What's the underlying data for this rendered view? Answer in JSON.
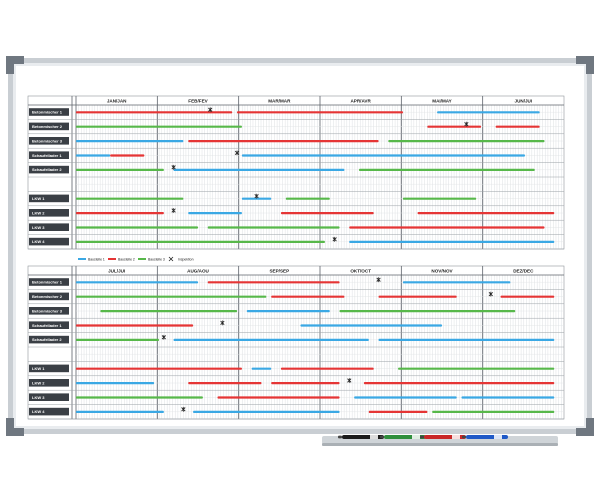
{
  "board": {
    "colors": {
      "blue": "#3aa8e4",
      "red": "#e53535",
      "green": "#57b84a",
      "frame": "#c9ced3",
      "corner": "#6f7780",
      "row_label_bg": "#3a3f45",
      "grid_line": "#b9bec3"
    },
    "top": {
      "months": [
        "JAN/JAN",
        "FEB/FEV",
        "MAR/MAR",
        "APR/AVR",
        "MAI/MAY",
        "JUN/JUI"
      ],
      "rows": [
        "Betonmischer 1",
        "Betonmischer 2",
        "Betonmischer 3",
        "Schaufellader 1",
        "Schaufellader 2",
        "",
        "LKW 1",
        "LKW 2",
        "LKW 3",
        "LKW 4"
      ],
      "bars": [
        {
          "row": 0,
          "start": 0.0,
          "end": 0.32,
          "color": "red"
        },
        {
          "row": 0,
          "start": 0.33,
          "end": 0.67,
          "color": "red"
        },
        {
          "row": 0,
          "start": 0.74,
          "end": 0.95,
          "color": "blue"
        },
        {
          "row": 1,
          "start": 0.0,
          "end": 0.34,
          "color": "green"
        },
        {
          "row": 1,
          "start": 0.72,
          "end": 0.83,
          "color": "red"
        },
        {
          "row": 1,
          "start": 0.86,
          "end": 0.95,
          "color": "red"
        },
        {
          "row": 2,
          "start": 0.0,
          "end": 0.22,
          "color": "blue"
        },
        {
          "row": 2,
          "start": 0.23,
          "end": 0.62,
          "color": "red"
        },
        {
          "row": 2,
          "start": 0.64,
          "end": 0.96,
          "color": "green"
        },
        {
          "row": 3,
          "start": 0.0,
          "end": 0.07,
          "color": "blue"
        },
        {
          "row": 3,
          "start": 0.07,
          "end": 0.14,
          "color": "red"
        },
        {
          "row": 3,
          "start": 0.34,
          "end": 0.92,
          "color": "blue"
        },
        {
          "row": 4,
          "start": 0.0,
          "end": 0.18,
          "color": "green"
        },
        {
          "row": 4,
          "start": 0.2,
          "end": 0.55,
          "color": "blue"
        },
        {
          "row": 4,
          "start": 0.58,
          "end": 0.94,
          "color": "green"
        },
        {
          "row": 6,
          "start": 0.0,
          "end": 0.22,
          "color": "green"
        },
        {
          "row": 6,
          "start": 0.34,
          "end": 0.4,
          "color": "blue"
        },
        {
          "row": 6,
          "start": 0.43,
          "end": 0.52,
          "color": "green"
        },
        {
          "row": 6,
          "start": 0.67,
          "end": 0.82,
          "color": "green"
        },
        {
          "row": 7,
          "start": 0.0,
          "end": 0.18,
          "color": "red"
        },
        {
          "row": 7,
          "start": 0.23,
          "end": 0.34,
          "color": "blue"
        },
        {
          "row": 7,
          "start": 0.42,
          "end": 0.61,
          "color": "red"
        },
        {
          "row": 7,
          "start": 0.7,
          "end": 0.98,
          "color": "red"
        },
        {
          "row": 8,
          "start": 0.0,
          "end": 0.25,
          "color": "green"
        },
        {
          "row": 8,
          "start": 0.27,
          "end": 0.54,
          "color": "green"
        },
        {
          "row": 8,
          "start": 0.56,
          "end": 0.96,
          "color": "red"
        },
        {
          "row": 9,
          "start": 0.0,
          "end": 0.51,
          "color": "green"
        },
        {
          "row": 9,
          "start": 0.56,
          "end": 0.98,
          "color": "blue"
        }
      ],
      "marks": [
        {
          "row": 0,
          "pos": 0.275
        },
        {
          "row": 1,
          "pos": 0.8
        },
        {
          "row": 3,
          "pos": 0.33
        },
        {
          "row": 4,
          "pos": 0.2
        },
        {
          "row": 6,
          "pos": 0.37
        },
        {
          "row": 7,
          "pos": 0.2
        },
        {
          "row": 9,
          "pos": 0.53
        }
      ]
    },
    "legend": [
      {
        "label": "Baustelle 1",
        "color": "blue"
      },
      {
        "label": "Baustelle 2",
        "color": "red"
      },
      {
        "label": "Baustelle 3",
        "color": "green"
      },
      {
        "label": "Inspektion",
        "color": "mark"
      }
    ],
    "bottom": {
      "months": [
        "JUL/JUI",
        "AUG/AOU",
        "SEP/SEP",
        "OKT/OCT",
        "NOV/NOV",
        "DEZ/DEC"
      ],
      "rows": [
        "Betonmischer 1",
        "Betonmischer 2",
        "Betonmischer 3",
        "Schaufellader 1",
        "Schaufellader 2",
        "",
        "LKW 1",
        "LKW 2",
        "LKW 3",
        "LKW 4"
      ],
      "bars": [
        {
          "row": 0,
          "start": 0.0,
          "end": 0.25,
          "color": "blue"
        },
        {
          "row": 0,
          "start": 0.27,
          "end": 0.54,
          "color": "red"
        },
        {
          "row": 0,
          "start": 0.67,
          "end": 0.89,
          "color": "blue"
        },
        {
          "row": 1,
          "start": 0.0,
          "end": 0.39,
          "color": "green"
        },
        {
          "row": 1,
          "start": 0.4,
          "end": 0.55,
          "color": "red"
        },
        {
          "row": 1,
          "start": 0.62,
          "end": 0.78,
          "color": "red"
        },
        {
          "row": 1,
          "start": 0.87,
          "end": 0.98,
          "color": "red"
        },
        {
          "row": 2,
          "start": 0.05,
          "end": 0.33,
          "color": "green"
        },
        {
          "row": 2,
          "start": 0.35,
          "end": 0.52,
          "color": "blue"
        },
        {
          "row": 2,
          "start": 0.54,
          "end": 0.9,
          "color": "green"
        },
        {
          "row": 3,
          "start": 0.0,
          "end": 0.24,
          "color": "red"
        },
        {
          "row": 3,
          "start": 0.46,
          "end": 0.75,
          "color": "blue"
        },
        {
          "row": 4,
          "start": 0.0,
          "end": 0.17,
          "color": "green"
        },
        {
          "row": 4,
          "start": 0.2,
          "end": 0.6,
          "color": "blue"
        },
        {
          "row": 4,
          "start": 0.62,
          "end": 0.98,
          "color": "blue"
        },
        {
          "row": 6,
          "start": 0.0,
          "end": 0.34,
          "color": "red"
        },
        {
          "row": 6,
          "start": 0.36,
          "end": 0.4,
          "color": "blue"
        },
        {
          "row": 6,
          "start": 0.42,
          "end": 0.61,
          "color": "red"
        },
        {
          "row": 6,
          "start": 0.66,
          "end": 0.98,
          "color": "green"
        },
        {
          "row": 7,
          "start": 0.0,
          "end": 0.16,
          "color": "blue"
        },
        {
          "row": 7,
          "start": 0.23,
          "end": 0.38,
          "color": "red"
        },
        {
          "row": 7,
          "start": 0.4,
          "end": 0.54,
          "color": "red"
        },
        {
          "row": 7,
          "start": 0.59,
          "end": 0.98,
          "color": "red"
        },
        {
          "row": 8,
          "start": 0.0,
          "end": 0.26,
          "color": "green"
        },
        {
          "row": 8,
          "start": 0.29,
          "end": 0.54,
          "color": "red"
        },
        {
          "row": 8,
          "start": 0.57,
          "end": 0.78,
          "color": "blue"
        },
        {
          "row": 8,
          "start": 0.79,
          "end": 0.98,
          "color": "blue"
        },
        {
          "row": 9,
          "start": 0.0,
          "end": 0.18,
          "color": "blue"
        },
        {
          "row": 9,
          "start": 0.24,
          "end": 0.54,
          "color": "blue"
        },
        {
          "row": 9,
          "start": 0.6,
          "end": 0.72,
          "color": "red"
        },
        {
          "row": 9,
          "start": 0.73,
          "end": 0.98,
          "color": "green"
        }
      ],
      "marks": [
        {
          "row": 0,
          "pos": 0.62
        },
        {
          "row": 1,
          "pos": 0.85
        },
        {
          "row": 3,
          "pos": 0.3
        },
        {
          "row": 4,
          "pos": 0.18
        },
        {
          "row": 7,
          "pos": 0.56
        },
        {
          "row": 9,
          "pos": 0.22
        }
      ]
    },
    "tray": {
      "markers": [
        {
          "name": "black-marker",
          "color": "#1b1b1b"
        },
        {
          "name": "green-marker",
          "color": "#2f8f3c"
        },
        {
          "name": "red-marker",
          "color": "#c92727"
        },
        {
          "name": "blue-marker",
          "color": "#1f59c7"
        }
      ]
    }
  }
}
